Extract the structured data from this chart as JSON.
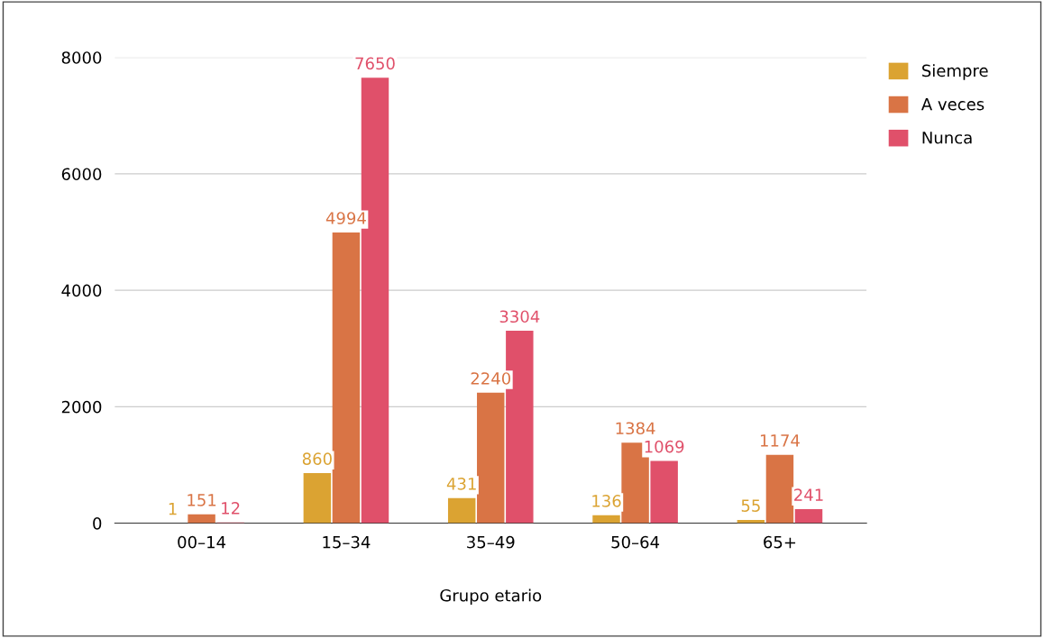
{
  "chart_data": {
    "type": "bar",
    "xlabel": "Grupo etario",
    "categories": [
      "00–14",
      "15–34",
      "35–49",
      "50–64",
      "65+"
    ],
    "series": [
      {
        "name": "Siempre",
        "color": "#dba332",
        "values": [
          1,
          860,
          431,
          136,
          55
        ]
      },
      {
        "name": "A veces",
        "color": "#d97445",
        "values": [
          151,
          4994,
          2240,
          1384,
          1174
        ]
      },
      {
        "name": "Nunca",
        "color": "#e0506a",
        "values": [
          12,
          7650,
          3304,
          1069,
          241
        ]
      }
    ],
    "ylim": [
      0,
      8000
    ],
    "yticks": [
      0,
      2000,
      4000,
      6000,
      8000
    ],
    "grid": "y",
    "legend": "right",
    "data_labels": true
  }
}
